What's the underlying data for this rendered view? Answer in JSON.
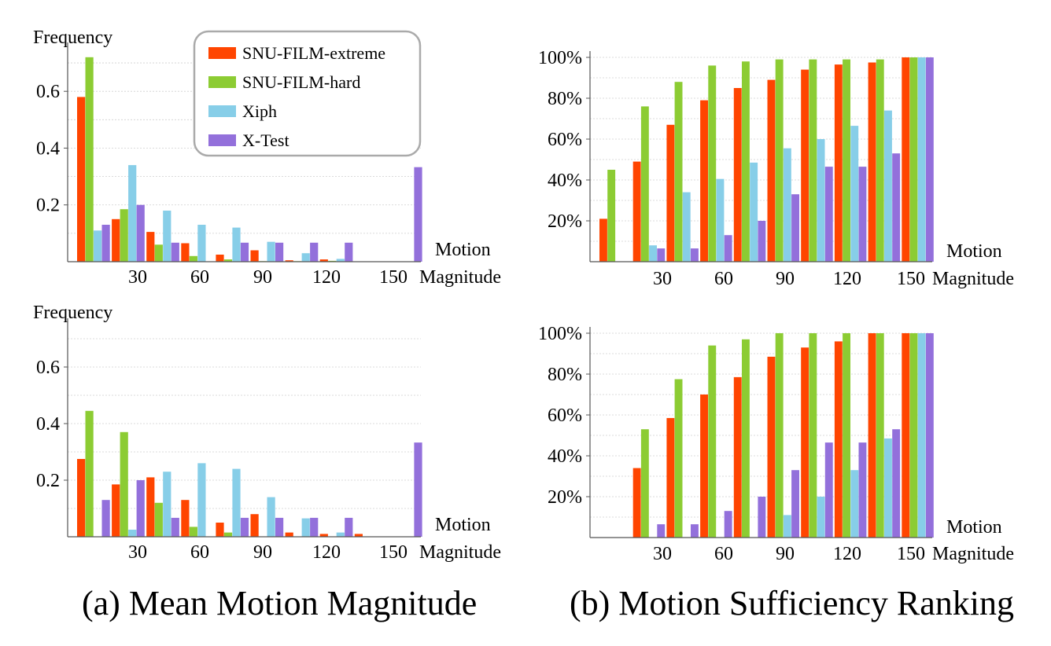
{
  "colors": {
    "snu_extreme": "#ff4500",
    "snu_hard": "#8ccc33",
    "xiph": "#87cee8",
    "xtest": "#9370db"
  },
  "legend": [
    "SNU-FILM-extreme",
    "SNU-FILM-hard",
    "Xiph",
    "X-Test"
  ],
  "captions": {
    "a": "(a) Mean Motion Magnitude",
    "b": "(b) Motion Sufficiency Ranking"
  },
  "chart_data": [
    {
      "type": "bar",
      "panel": "a-top",
      "ylabel": "Frequency",
      "xlabel": [
        "Motion",
        "Magnitude"
      ],
      "x": [
        15,
        30,
        45,
        60,
        75,
        90,
        105,
        120,
        135,
        150
      ],
      "x_tick_labels": [
        "30",
        "60",
        "90",
        "120",
        "150"
      ],
      "y_tick_labels": [
        "0.2",
        "0.4",
        "0.6"
      ],
      "ylim": [
        0,
        0.75
      ],
      "grid": true,
      "legend_position": "top-center",
      "series": [
        {
          "name": "SNU-FILM-extreme",
          "values": [
            0.58,
            0.15,
            0.105,
            0.065,
            0.025,
            0.04,
            0.005,
            0.008,
            0,
            0
          ]
        },
        {
          "name": "SNU-FILM-hard",
          "values": [
            0.72,
            0.185,
            0.06,
            0.02,
            0.008,
            0.002,
            0.002,
            0.003,
            0,
            0
          ]
        },
        {
          "name": "Xiph",
          "values": [
            0.11,
            0.34,
            0.18,
            0.13,
            0.12,
            0.07,
            0.03,
            0.01,
            0,
            0
          ]
        },
        {
          "name": "X-Test",
          "values": [
            0.13,
            0.2,
            0.067,
            0,
            0.067,
            0.067,
            0.067,
            0.067,
            0,
            0.333
          ]
        }
      ]
    },
    {
      "type": "bar",
      "panel": "a-bottom",
      "ylabel": "Frequency",
      "xlabel": [
        "Motion",
        "Magnitude"
      ],
      "x": [
        15,
        30,
        45,
        60,
        75,
        90,
        105,
        120,
        135,
        150
      ],
      "x_tick_labels": [
        "30",
        "60",
        "90",
        "120",
        "150"
      ],
      "y_tick_labels": [
        "0.2",
        "0.4",
        "0.6"
      ],
      "ylim": [
        0,
        0.75
      ],
      "grid": true,
      "series": [
        {
          "name": "SNU-FILM-extreme",
          "values": [
            0.275,
            0.185,
            0.21,
            0.13,
            0.05,
            0.08,
            0.015,
            0.01,
            0.01,
            0
          ]
        },
        {
          "name": "SNU-FILM-hard",
          "values": [
            0.445,
            0.37,
            0.12,
            0.035,
            0.015,
            0,
            0,
            0,
            0,
            0
          ]
        },
        {
          "name": "Xiph",
          "values": [
            0,
            0.025,
            0.23,
            0.26,
            0.24,
            0.14,
            0.065,
            0.015,
            0,
            0
          ]
        },
        {
          "name": "X-Test",
          "values": [
            0.13,
            0.2,
            0.067,
            0,
            0.067,
            0.067,
            0.067,
            0.067,
            0,
            0.333
          ]
        }
      ]
    },
    {
      "type": "bar",
      "panel": "b-top",
      "xlabel": [
        "Motion",
        "Magnitude"
      ],
      "x": [
        15,
        30,
        45,
        60,
        75,
        90,
        105,
        120,
        135,
        150
      ],
      "x_tick_labels": [
        "30",
        "60",
        "90",
        "120",
        "150"
      ],
      "y_tick_labels": [
        "20%",
        "40%",
        "60%",
        "80%",
        "100%"
      ],
      "ylim": [
        0,
        100
      ],
      "grid": true,
      "series": [
        {
          "name": "SNU-FILM-extreme",
          "values": [
            21,
            49,
            67,
            79,
            85,
            89,
            94,
            96.5,
            97.5,
            100
          ]
        },
        {
          "name": "SNU-FILM-hard",
          "values": [
            45,
            76,
            88,
            96,
            98,
            99,
            99,
            99,
            99,
            100
          ]
        },
        {
          "name": "Xiph",
          "values": [
            0,
            8,
            34,
            40.5,
            48.5,
            55.5,
            60,
            66.5,
            74,
            100
          ]
        },
        {
          "name": "X-Test",
          "values": [
            0,
            6.5,
            6.5,
            13,
            20,
            33,
            46.5,
            46.5,
            53,
            100
          ]
        }
      ]
    },
    {
      "type": "bar",
      "panel": "b-bottom",
      "xlabel": [
        "Motion",
        "Magnitude"
      ],
      "x": [
        15,
        30,
        45,
        60,
        75,
        90,
        105,
        120,
        135,
        150
      ],
      "x_tick_labels": [
        "30",
        "60",
        "90",
        "120",
        "150"
      ],
      "y_tick_labels": [
        "20%",
        "40%",
        "60%",
        "80%",
        "100%"
      ],
      "ylim": [
        0,
        100
      ],
      "grid": true,
      "series": [
        {
          "name": "SNU-FILM-extreme",
          "values": [
            0,
            34,
            58.5,
            70,
            78.5,
            88.5,
            93,
            96,
            100,
            100
          ]
        },
        {
          "name": "SNU-FILM-hard",
          "values": [
            0,
            53,
            77.5,
            94,
            97,
            100,
            100,
            100,
            100,
            100
          ]
        },
        {
          "name": "Xiph",
          "values": [
            0,
            0,
            0,
            0,
            0,
            11,
            20,
            33,
            48.5,
            100
          ]
        },
        {
          "name": "X-Test",
          "values": [
            0,
            6.5,
            6.5,
            13,
            20,
            33,
            46.5,
            46.5,
            53,
            100
          ]
        }
      ]
    }
  ]
}
